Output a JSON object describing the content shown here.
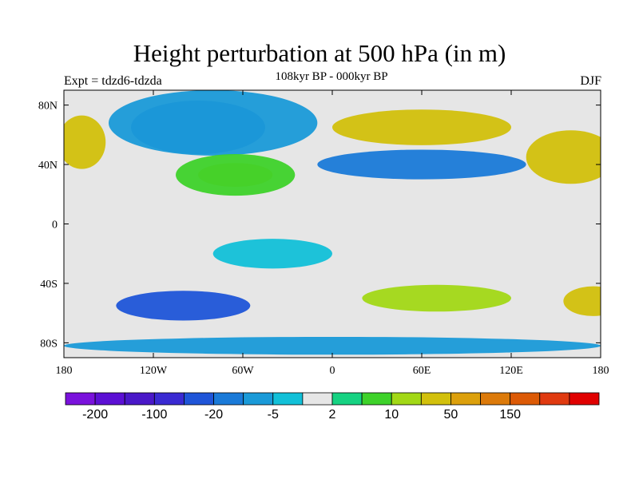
{
  "title": "Height perturbation at 500 hPa (in m)",
  "subtitle": "108kyr BP - 000kyr BP",
  "experiment": "Expt = tdzd6-tdzda",
  "season": "DJF",
  "map": {
    "projection": "cylindrical equidistant",
    "lon_range": [
      -180,
      180
    ],
    "lat_range": [
      -90,
      90
    ],
    "background_color": "#e6e6e6",
    "x_ticks": [
      {
        "value": -180,
        "label": "180"
      },
      {
        "value": -120,
        "label": "120W"
      },
      {
        "value": -60,
        "label": "60W"
      },
      {
        "value": 0,
        "label": "0"
      },
      {
        "value": 60,
        "label": "60E"
      },
      {
        "value": 120,
        "label": "120E"
      },
      {
        "value": 180,
        "label": "180"
      }
    ],
    "y_ticks": [
      {
        "value": 80,
        "label": "80N"
      },
      {
        "value": 40,
        "label": "40N"
      },
      {
        "value": 0,
        "label": "0"
      },
      {
        "value": -40,
        "label": "40S"
      },
      {
        "value": -80,
        "label": "80S"
      }
    ]
  },
  "colorbar": {
    "colors": [
      "#7a12dc",
      "#5c10d4",
      "#4a18c8",
      "#3a2ad2",
      "#1f55d8",
      "#1a7ad8",
      "#1a9ad8",
      "#12c0d8",
      "#e6e6e6",
      "#16d282",
      "#3ed22a",
      "#a2d816",
      "#d2c00c",
      "#dca00c",
      "#dc7a0a",
      "#dc5a06",
      "#e03a10",
      "#e00000"
    ],
    "labels": [
      {
        "text": "-200",
        "boundary": 1
      },
      {
        "text": "-100",
        "boundary": 3
      },
      {
        "text": "-20",
        "boundary": 5
      },
      {
        "text": "-5",
        "boundary": 7
      },
      {
        "text": "2",
        "boundary": 9
      },
      {
        "text": "10",
        "boundary": 11
      },
      {
        "text": "50",
        "boundary": 13
      },
      {
        "text": "150",
        "boundary": 15
      }
    ]
  },
  "anomaly_regions": [
    {
      "name": "north-america-arctic-low",
      "level": "-100 to -20",
      "color": "#1f55d8",
      "lon": -90,
      "lat": 65,
      "rlon": 45,
      "rlat": 18
    },
    {
      "name": "north-america-outer-low",
      "level": "-20 to -5",
      "color": "#1a9ad8",
      "lon": -80,
      "lat": 68,
      "rlon": 70,
      "rlat": 22
    },
    {
      "name": "north-atlantic-high",
      "level": "10 to 50",
      "color": "#d2c00c",
      "lon": -65,
      "lat": 33,
      "rlon": 25,
      "rlat": 8
    },
    {
      "name": "north-atlantic-high-outer",
      "level": "2 to 10",
      "color": "#3ed22a",
      "lon": -65,
      "lat": 33,
      "rlon": 40,
      "rlat": 14
    },
    {
      "name": "eurasia-low",
      "level": "-20 to -5",
      "color": "#1a7ad8",
      "lon": 60,
      "lat": 40,
      "rlon": 70,
      "rlat": 10
    },
    {
      "name": "north-eurasia-high",
      "level": "10 to 50",
      "color": "#d2c00c",
      "lon": 60,
      "lat": 65,
      "rlon": 60,
      "rlat": 12
    },
    {
      "name": "north-pacific-high-east",
      "level": "10 to 50",
      "color": "#d2c00c",
      "lon": 160,
      "lat": 45,
      "rlon": 30,
      "rlat": 18
    },
    {
      "name": "north-pacific-high-west",
      "level": "10 to 50",
      "color": "#d2c00c",
      "lon": -168,
      "lat": 55,
      "rlon": 16,
      "rlat": 18
    },
    {
      "name": "southern-ocean-low",
      "level": "-100 to -20",
      "color": "#1f55d8",
      "lon": -100,
      "lat": -55,
      "rlon": 45,
      "rlat": 10
    },
    {
      "name": "southern-ocean-high",
      "level": "10 to 50",
      "color": "#a2d816",
      "lon": 70,
      "lat": -50,
      "rlon": 50,
      "rlat": 9
    },
    {
      "name": "south-pacific-high",
      "level": "10 to 50",
      "color": "#d2c00c",
      "lon": 175,
      "lat": -52,
      "rlon": 20,
      "rlat": 10
    },
    {
      "name": "tropical-low-atlantic",
      "level": "-5 to 2",
      "color": "#12c0d8",
      "lon": -40,
      "lat": -20,
      "rlon": 40,
      "rlat": 10
    },
    {
      "name": "antarctic-low",
      "level": "-20 to -5",
      "color": "#1a9ad8",
      "lon": 0,
      "lat": -82,
      "rlon": 180,
      "rlat": 6
    }
  ]
}
